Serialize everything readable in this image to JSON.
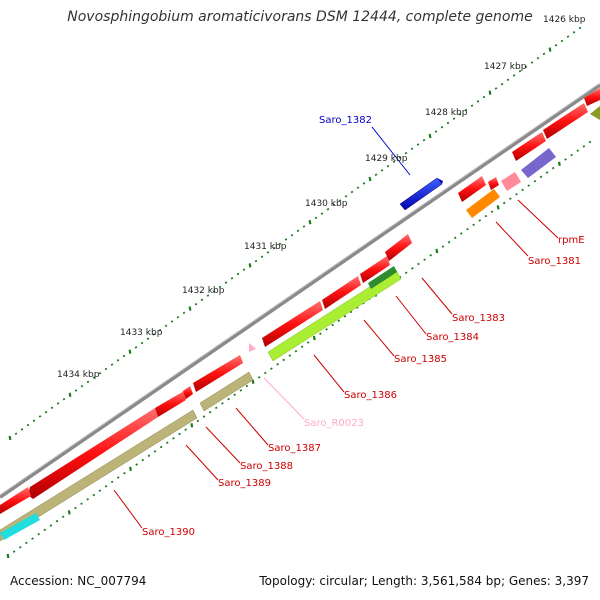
{
  "title": "Novosphingobium aromaticivorans DSM 12444, complete genome",
  "accession": "Accession: NC_007794",
  "summary": "Topology: circular; Length: 3,561,584 bp; Genes: 3,397",
  "ticks": [
    {
      "label": "1426 kbp"
    },
    {
      "label": "1427 kbp"
    },
    {
      "label": "1428 kbp"
    },
    {
      "label": "1429 kbp"
    },
    {
      "label": "1430 kbp"
    },
    {
      "label": "1431 kbp"
    },
    {
      "label": "1432 kbp"
    },
    {
      "label": "1433 kbp"
    },
    {
      "label": "1434 kbp"
    }
  ],
  "genes": [
    {
      "label": "Saro_1382"
    },
    {
      "label": "rpmE"
    },
    {
      "label": "Saro_1381"
    },
    {
      "label": "Saro_1383"
    },
    {
      "label": "Saro_1384"
    },
    {
      "label": "Saro_1385"
    },
    {
      "label": "Saro_1386"
    },
    {
      "label": "Saro_R0023"
    },
    {
      "label": "Saro_1387"
    },
    {
      "label": "Saro_1388"
    },
    {
      "label": "Saro_1389"
    },
    {
      "label": "Saro_1390"
    }
  ],
  "colors": {
    "backbone": "#8a8a8a",
    "cds": "#ff1a1a",
    "gene_label": "#cc0000",
    "highlight_cds": "#0000cc",
    "rna": "#ffaacc",
    "green_feature": "#aaee33",
    "olive_feature": "#bbb377",
    "orange_feature": "#ff8800",
    "purple_feature": "#7766cc",
    "cyan_feature": "#22dddd",
    "tick_dot": "#1e7a1e"
  }
}
